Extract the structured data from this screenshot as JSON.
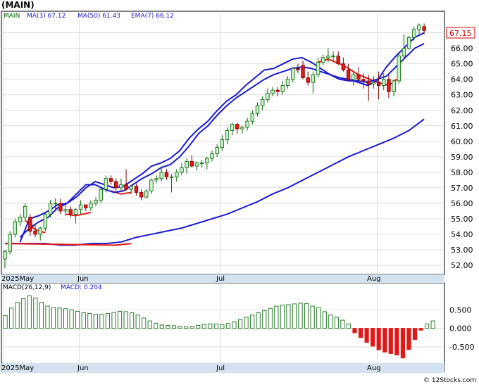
{
  "ticker_label": "(MAIN)",
  "legend": {
    "main": "MAIN",
    "ma3": "MA(3)   67.12",
    "ma50": "MA(50)   61.43",
    "ema7": "EMA(7)   66.12"
  },
  "price_tag": "67.15",
  "macd_legend": {
    "params": "MACD(26,12,9)",
    "value": "MACD: 0.204"
  },
  "footer": "© 12Stocks.com",
  "colors": {
    "up_fill": "#c8f0c8",
    "up_edge": "#006400",
    "down_fill": "#e01818",
    "down_edge": "#7a0000",
    "ma_short": "#1a1acc",
    "ema": "#e01818",
    "macd_pos": "#2c7a2c",
    "macd_neg": "#e01818",
    "axis_band": "#d4e2f0",
    "grid": "#d0d0d0"
  },
  "chart_data": [
    {
      "type": "candlestick",
      "title": "(MAIN)",
      "ylim": [
        51.5,
        68.3
      ],
      "y_ticks": [
        "52.00",
        "53.00",
        "54.00",
        "55.00",
        "56.00",
        "57.00",
        "58.00",
        "59.00",
        "60.00",
        "61.00",
        "62.00",
        "63.00",
        "64.00",
        "65.00",
        "66.00",
        "67.00"
      ],
      "x_labels": [
        "2025May",
        "Jun",
        "Jul",
        "Aug"
      ],
      "candles": [
        [
          52.4,
          53.0,
          51.8,
          52.9
        ],
        [
          52.9,
          54.2,
          52.7,
          54.0
        ],
        [
          54.0,
          55.0,
          53.8,
          54.8
        ],
        [
          54.8,
          55.3,
          54.5,
          55.1
        ],
        [
          55.1,
          56.0,
          54.9,
          55.8
        ],
        [
          55.1,
          55.3,
          53.9,
          54.2
        ],
        [
          54.2,
          54.6,
          53.8,
          54.0
        ],
        [
          54.0,
          54.5,
          53.6,
          54.4
        ],
        [
          54.4,
          55.4,
          54.2,
          55.3
        ],
        [
          55.3,
          56.2,
          55.1,
          56.0
        ],
        [
          56.0,
          56.3,
          55.6,
          56.0
        ],
        [
          56.0,
          56.3,
          55.3,
          55.5
        ],
        [
          55.5,
          55.9,
          55.2,
          55.6
        ],
        [
          55.6,
          55.8,
          55.1,
          55.3
        ],
        [
          55.3,
          55.7,
          54.7,
          55.6
        ],
        [
          55.6,
          56.2,
          55.3,
          55.9
        ],
        [
          55.9,
          55.9,
          55.5,
          55.7
        ],
        [
          55.7,
          56.2,
          55.5,
          56.0
        ],
        [
          56.0,
          56.4,
          55.8,
          56.2
        ],
        [
          56.2,
          57.0,
          56.0,
          56.9
        ],
        [
          56.9,
          57.8,
          56.7,
          57.6
        ],
        [
          57.6,
          57.8,
          57.2,
          57.4
        ],
        [
          57.4,
          57.6,
          56.8,
          57.0
        ],
        [
          57.0,
          57.6,
          56.8,
          57.2
        ],
        [
          57.2,
          58.2,
          56.8,
          56.9
        ],
        [
          56.9,
          57.2,
          56.6,
          57.1
        ],
        [
          57.1,
          57.3,
          56.5,
          56.7
        ],
        [
          56.7,
          56.9,
          56.2,
          56.4
        ],
        [
          56.4,
          56.9,
          56.3,
          56.8
        ],
        [
          56.8,
          57.6,
          56.6,
          57.5
        ],
        [
          57.5,
          57.8,
          57.3,
          57.6
        ],
        [
          57.6,
          58.3,
          57.4,
          58.0
        ],
        [
          58.0,
          58.2,
          57.5,
          57.7
        ],
        [
          57.7,
          57.9,
          56.7,
          57.7
        ],
        [
          57.7,
          58.2,
          57.4,
          58.0
        ],
        [
          58.0,
          58.6,
          57.8,
          58.3
        ],
        [
          58.3,
          58.9,
          57.9,
          58.7
        ],
        [
          58.7,
          59.1,
          58.3,
          58.4
        ],
        [
          58.4,
          58.7,
          58.1,
          58.6
        ],
        [
          58.6,
          58.8,
          58.3,
          58.6
        ],
        [
          58.6,
          59.0,
          58.2,
          58.9
        ],
        [
          58.9,
          59.4,
          58.7,
          59.2
        ],
        [
          59.2,
          59.8,
          59.0,
          59.6
        ],
        [
          59.6,
          60.4,
          59.4,
          60.1
        ],
        [
          60.1,
          60.9,
          59.8,
          60.7
        ],
        [
          60.7,
          61.2,
          60.4,
          61.1
        ],
        [
          61.1,
          61.2,
          60.5,
          60.8
        ],
        [
          60.8,
          61.0,
          60.5,
          60.9
        ],
        [
          60.9,
          61.5,
          60.7,
          61.3
        ],
        [
          61.3,
          62.0,
          61.1,
          61.8
        ],
        [
          61.8,
          62.5,
          61.6,
          62.3
        ],
        [
          62.3,
          62.9,
          62.0,
          62.7
        ],
        [
          62.7,
          63.4,
          62.5,
          63.1
        ],
        [
          63.1,
          63.5,
          62.9,
          63.3
        ],
        [
          63.3,
          63.5,
          62.9,
          63.2
        ],
        [
          63.2,
          63.9,
          63.0,
          63.6
        ],
        [
          63.6,
          64.2,
          63.4,
          64.0
        ],
        [
          64.0,
          64.8,
          63.8,
          64.7
        ],
        [
          64.7,
          65.0,
          64.4,
          64.6
        ],
        [
          64.9,
          65.2,
          64.0,
          64.1
        ],
        [
          64.1,
          64.5,
          63.6,
          63.8
        ],
        [
          63.8,
          64.5,
          63.1,
          64.3
        ],
        [
          64.3,
          65.4,
          64.1,
          65.1
        ],
        [
          65.1,
          65.6,
          64.9,
          65.4
        ],
        [
          65.4,
          66.0,
          65.1,
          65.5
        ],
        [
          65.5,
          65.8,
          65.2,
          65.5
        ],
        [
          65.5,
          65.8,
          64.9,
          65.0
        ],
        [
          65.0,
          65.4,
          64.5,
          64.6
        ],
        [
          64.6,
          65.0,
          63.9,
          64.0
        ],
        [
          64.0,
          64.5,
          63.6,
          64.3
        ],
        [
          64.3,
          64.8,
          63.9,
          64.0
        ],
        [
          64.0,
          64.4,
          63.4,
          63.9
        ],
        [
          63.9,
          64.3,
          62.6,
          63.7
        ],
        [
          63.7,
          64.2,
          63.4,
          63.8
        ],
        [
          63.8,
          64.5,
          62.7,
          63.6
        ],
        [
          63.6,
          64.4,
          63.3,
          64.0
        ],
        [
          64.0,
          64.3,
          62.8,
          63.2
        ],
        [
          63.2,
          64.0,
          62.9,
          63.9
        ],
        [
          63.9,
          65.7,
          63.7,
          65.5
        ],
        [
          65.5,
          66.9,
          65.3,
          66.0
        ],
        [
          66.0,
          66.8,
          65.9,
          66.7
        ],
        [
          66.7,
          67.4,
          66.5,
          67.2
        ],
        [
          67.2,
          67.6,
          66.9,
          67.5
        ],
        [
          67.4,
          67.6,
          66.9,
          67.15
        ]
      ],
      "ma_short": [
        [
          53.8,
          53.5
        ],
        [
          54.4,
          55.0
        ],
        [
          54.8,
          55.2
        ],
        [
          55.1,
          55.5
        ],
        [
          55.7,
          55.9
        ],
        [
          56.0,
          56.0
        ],
        [
          56.4,
          56.6
        ],
        [
          57.0,
          57.2
        ],
        [
          57.4,
          57.2
        ],
        [
          57.2,
          56.9
        ],
        [
          57.0,
          56.7
        ],
        [
          57.1,
          56.8
        ],
        [
          57.5,
          57.2
        ],
        [
          57.9,
          57.6
        ],
        [
          58.4,
          57.9
        ],
        [
          58.6,
          58.3
        ],
        [
          58.9,
          58.5
        ],
        [
          59.4,
          59.0
        ],
        [
          60.2,
          59.7
        ],
        [
          60.8,
          60.5
        ],
        [
          61.3,
          61.0
        ],
        [
          62.0,
          61.7
        ],
        [
          62.6,
          62.3
        ],
        [
          63.0,
          62.8
        ],
        [
          63.6,
          63.2
        ],
        [
          64.1,
          63.6
        ],
        [
          64.6,
          64.0
        ],
        [
          64.7,
          64.3
        ],
        [
          65.0,
          64.5
        ],
        [
          65.3,
          64.7
        ],
        [
          65.4,
          64.8
        ],
        [
          65.1,
          64.7
        ],
        [
          64.7,
          64.5
        ],
        [
          64.3,
          64.3
        ],
        [
          64.1,
          64.0
        ],
        [
          64.0,
          63.9
        ],
        [
          63.8,
          63.9
        ],
        [
          63.6,
          63.8
        ],
        [
          63.9,
          64.0
        ],
        [
          64.8,
          64.2
        ],
        [
          65.5,
          64.8
        ],
        [
          66.1,
          65.4
        ],
        [
          66.7,
          66.0
        ],
        [
          67.0,
          66.3
        ]
      ],
      "ma_long": [
        [
          0,
          53.4
        ],
        [
          2,
          53.4
        ],
        [
          5,
          53.4
        ],
        [
          8,
          53.4
        ],
        [
          11,
          53.3
        ],
        [
          14,
          53.3
        ],
        [
          17,
          53.4
        ],
        [
          20,
          53.4
        ],
        [
          23,
          53.5
        ],
        [
          26,
          53.8
        ],
        [
          29,
          54.0
        ],
        [
          32,
          54.2
        ],
        [
          35,
          54.4
        ],
        [
          38,
          54.7
        ],
        [
          41,
          55.0
        ],
        [
          44,
          55.3
        ],
        [
          47,
          55.7
        ],
        [
          50,
          56.1
        ],
        [
          53,
          56.6
        ],
        [
          56,
          57.0
        ],
        [
          59,
          57.5
        ],
        [
          62,
          58.0
        ],
        [
          65,
          58.5
        ],
        [
          68,
          59.0
        ],
        [
          71,
          59.4
        ],
        [
          74,
          59.8
        ],
        [
          77,
          60.2
        ],
        [
          80,
          60.7
        ],
        [
          83,
          61.43
        ]
      ],
      "ema_segments": [
        [
          [
            0,
            53.4
          ],
          [
            22,
            53.3
          ],
          [
            25,
            53.4
          ]
        ],
        [
          [
            4,
            54.9
          ],
          [
            6,
            54.3
          ],
          [
            8,
            54.1
          ]
        ],
        [
          [
            12,
            55.3
          ],
          [
            14,
            55.2
          ],
          [
            17,
            55.4
          ]
        ],
        [
          [
            21,
            56.8
          ],
          [
            23,
            56.6
          ],
          [
            25,
            56.7
          ]
        ],
        [
          [
            62,
            65.1
          ],
          [
            64,
            65.3
          ],
          [
            67,
            64.9
          ],
          [
            70,
            64.3
          ],
          [
            73,
            63.9
          ],
          [
            76,
            63.6
          ],
          [
            78,
            64.1
          ]
        ]
      ]
    },
    {
      "type": "bar",
      "title": "MACD(26,12,9)",
      "ylim": [
        -0.9,
        1.0
      ],
      "y_ticks": [
        "0.500",
        "0.000",
        "-0.500"
      ],
      "x_labels": [
        "2025May",
        "Jun",
        "Jul",
        "Aug"
      ],
      "values": [
        0.35,
        0.55,
        0.7,
        0.8,
        0.88,
        0.82,
        0.7,
        0.6,
        0.56,
        0.55,
        0.53,
        0.5,
        0.46,
        0.42,
        0.4,
        0.38,
        0.38,
        0.4,
        0.43,
        0.46,
        0.45,
        0.42,
        0.36,
        0.28,
        0.2,
        0.14,
        0.09,
        0.08,
        0.07,
        0.05,
        0.04,
        0.05,
        0.08,
        0.11,
        0.12,
        0.12,
        0.1,
        0.13,
        0.18,
        0.24,
        0.3,
        0.36,
        0.42,
        0.48,
        0.54,
        0.6,
        0.63,
        0.64,
        0.66,
        0.68,
        0.67,
        0.6,
        0.56,
        0.45,
        0.36,
        0.3,
        0.22,
        0.12,
        -0.12,
        -0.25,
        -0.38,
        -0.48,
        -0.58,
        -0.64,
        -0.68,
        -0.72,
        -0.8,
        -0.57,
        -0.3,
        -0.05,
        0.12,
        0.2
      ]
    }
  ]
}
